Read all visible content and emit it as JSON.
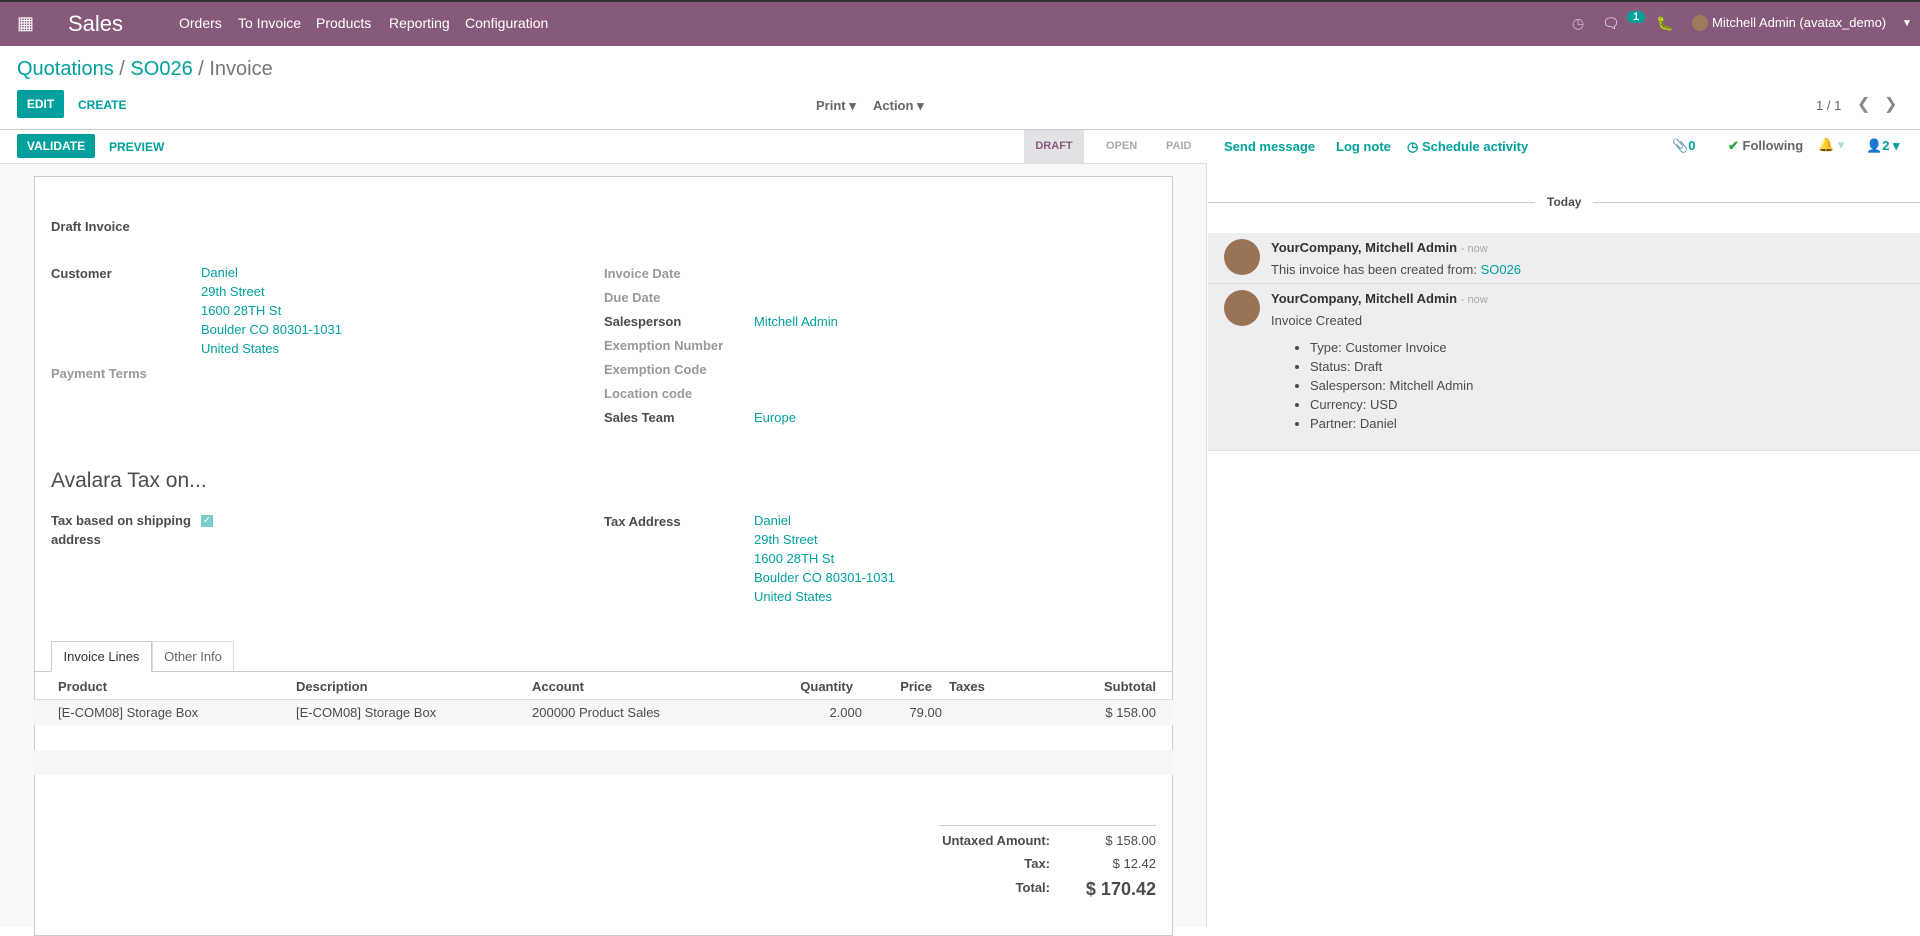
{
  "nav": {
    "app": "Sales",
    "menu": [
      "Orders",
      "To Invoice",
      "Products",
      "Reporting",
      "Configuration"
    ],
    "messages_count": "1",
    "user": "Mitchell Admin (avatax_demo)"
  },
  "breadcrumb": {
    "b1": "Quotations",
    "sep": "/",
    "b2": "SO026",
    "current": "Invoice"
  },
  "toolbar": {
    "edit": "EDIT",
    "create": "CREATE",
    "print": "Print",
    "action": "Action",
    "pager": "1 / 1"
  },
  "statusbar": {
    "validate": "VALIDATE",
    "preview": "PREVIEW",
    "stages": [
      "DRAFT",
      "OPEN",
      "PAID"
    ],
    "active": "DRAFT"
  },
  "form": {
    "title": "Draft Invoice",
    "customer_label": "Customer",
    "customer": [
      "Daniel",
      "29th Street",
      "1600 28TH St",
      "Boulder CO 80301-1031",
      "United States"
    ],
    "payment_terms_label": "Payment Terms",
    "invoice_date_label": "Invoice Date",
    "due_date_label": "Due Date",
    "salesperson_label": "Salesperson",
    "salesperson": "Mitchell Admin",
    "exemption_number_label": "Exemption Number",
    "exemption_code_label": "Exemption Code",
    "location_code_label": "Location code",
    "sales_team_label": "Sales Team",
    "sales_team": "Europe",
    "avalara_title": "Avalara Tax on...",
    "tax_shipping_label": "Tax based on shipping address",
    "tax_shipping_checked": true,
    "tax_address_label": "Tax Address",
    "tax_address": [
      "Daniel",
      "29th Street",
      "1600 28TH St",
      "Boulder CO 80301-1031",
      "United States"
    ],
    "tabs": [
      "Invoice Lines",
      "Other Info"
    ],
    "columns": [
      "Product",
      "Description",
      "Account",
      "Quantity",
      "Price",
      "Taxes",
      "Subtotal"
    ],
    "rows": [
      [
        "[E-COM08] Storage Box",
        "[E-COM08] Storage Box",
        "200000 Product Sales",
        "2.000",
        "79.00",
        "",
        "$ 158.00"
      ]
    ],
    "untaxed_label": "Untaxed Amount:",
    "untaxed": "$ 158.00",
    "tax_label": "Tax:",
    "tax": "$ 12.42",
    "total_label": "Total:",
    "total": "$ 170.42"
  },
  "chatter": {
    "send": "Send message",
    "log": "Log note",
    "schedule": "Schedule activity",
    "attachments": "0",
    "following": "Following",
    "followers": "2",
    "today": "Today",
    "messages": [
      {
        "author": "YourCompany, Mitchell Admin",
        "time": "- now",
        "text": "This invoice has been created from:",
        "link": "SO026"
      },
      {
        "author": "YourCompany, Mitchell Admin",
        "time": "- now",
        "text": "Invoice Created",
        "items": [
          "Type: Customer Invoice",
          "Status: Draft",
          "Salesperson: Mitchell Admin",
          "Currency: USD",
          "Partner: Daniel"
        ]
      }
    ]
  },
  "colors": {
    "brand": "#875a7b",
    "accent": "#00a09d"
  }
}
